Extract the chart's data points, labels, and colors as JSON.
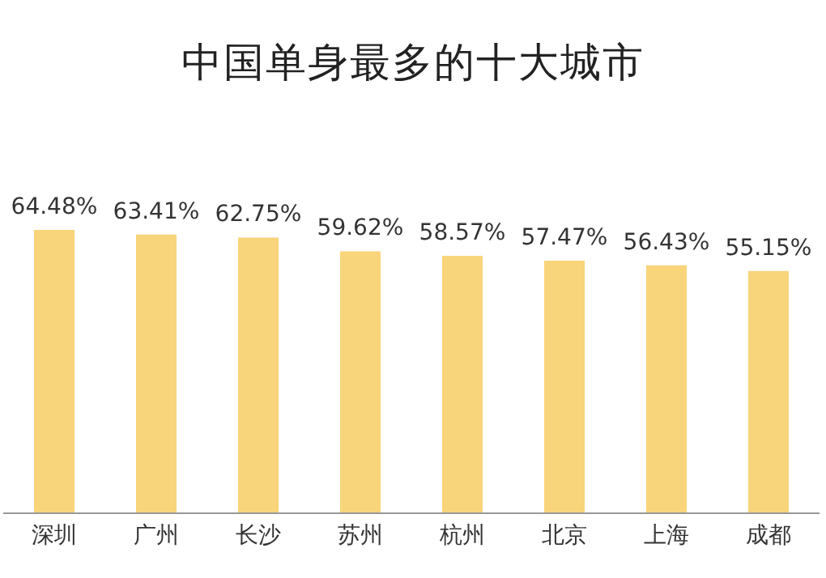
{
  "chart_data": {
    "type": "bar",
    "title": "中国单身最多的十大城市",
    "categories": [
      "深圳",
      "广州",
      "长沙",
      "苏州",
      "杭州",
      "北京",
      "上海",
      "成都"
    ],
    "values": [
      64.48,
      63.41,
      62.75,
      59.62,
      58.57,
      57.47,
      56.43,
      55.15
    ],
    "value_labels": [
      "64.48%",
      "63.41%",
      "62.75%",
      "59.62%",
      "58.57%",
      "57.47%",
      "56.43%",
      "55.15%"
    ],
    "color": "#f8d47a",
    "tick_labels": "x",
    "grid": false
  }
}
